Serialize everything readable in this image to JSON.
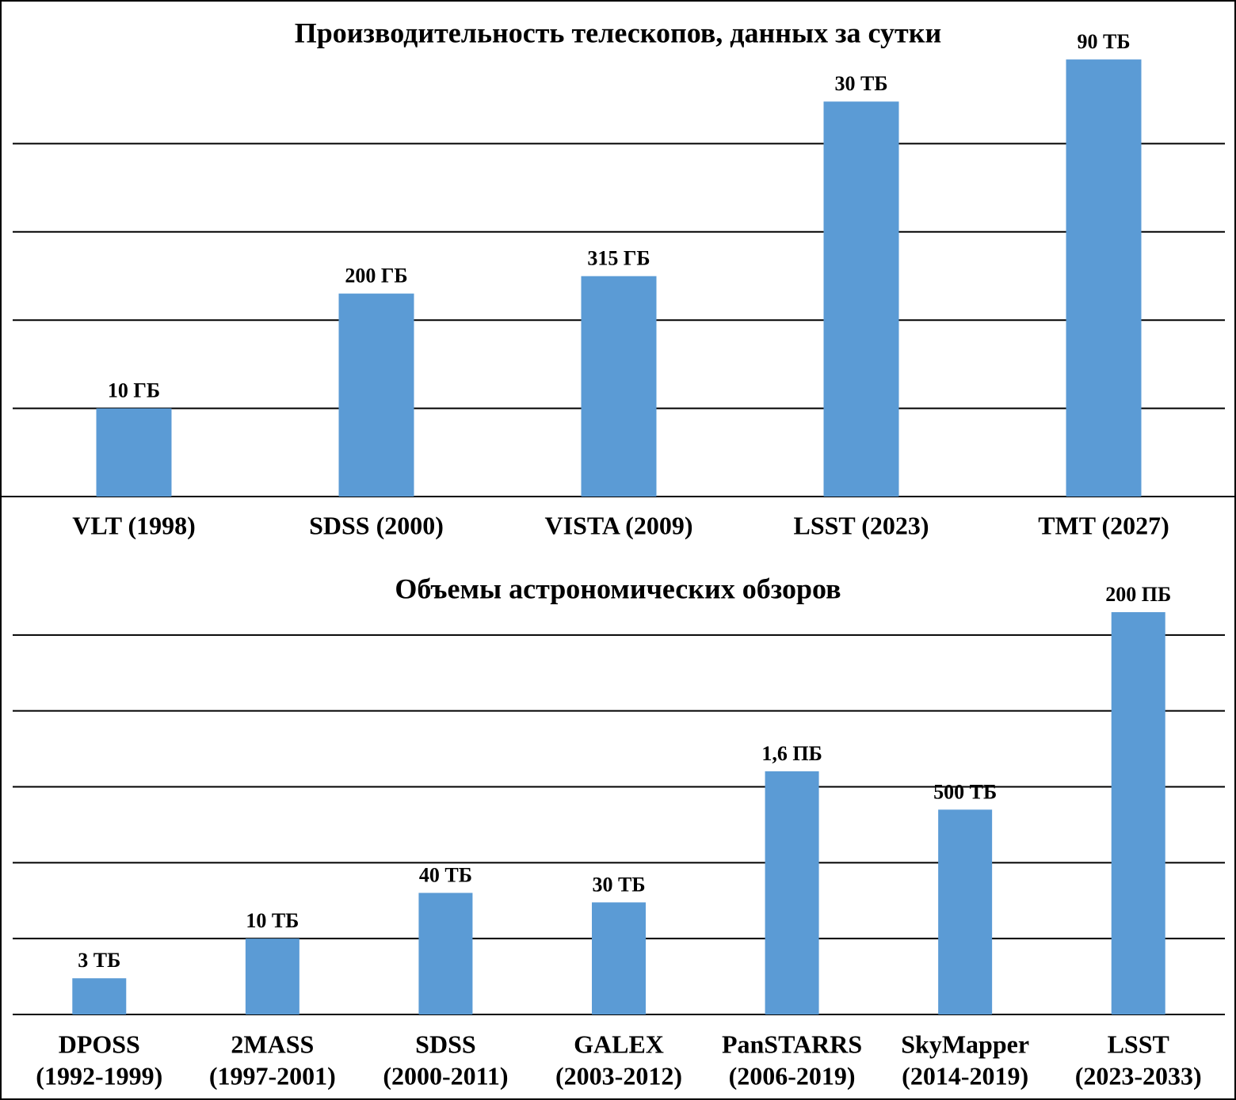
{
  "chart_data": [
    {
      "type": "bar",
      "title": "Производительность телескопов, данных за сутки",
      "categories": [
        "VLT (1998)",
        "SDSS (2000)",
        "VISTA (2009)",
        "LSST (2023)",
        "TMT (2027)"
      ],
      "values": [
        10,
        200,
        315,
        30000,
        90000
      ],
      "value_labels": [
        "10 ГБ",
        "200 ГБ",
        "315 ГБ",
        "30 ТБ",
        "90 ТБ"
      ],
      "color": "#5b9bd5",
      "log_scale": true,
      "grid": true,
      "ylim": [
        1,
        100000
      ],
      "yticks": [
        10,
        100,
        1000,
        10000
      ]
    },
    {
      "type": "bar",
      "title": "Объемы астрономических обзоров",
      "categories": [
        [
          "DPOSS",
          "(1992-1999)"
        ],
        [
          "2MASS",
          "(1997-2001)"
        ],
        [
          "SDSS",
          "(2000-2011)"
        ],
        [
          "GALEX",
          "(2003-2012)"
        ],
        [
          "PanSTARRS",
          "(2006-2019)"
        ],
        [
          "SkyMapper",
          "(2014-2019)"
        ],
        [
          "LSST",
          "(2023-2033)"
        ]
      ],
      "values": [
        3,
        10,
        40,
        30,
        1600,
        500,
        200000
      ],
      "value_labels": [
        "3 ТБ",
        "10 ТБ",
        "40 ТБ",
        "30 ТБ",
        "1,6 ПБ",
        "500 ТБ",
        "200 ПБ"
      ],
      "color": "#5b9bd5",
      "log_scale": true,
      "grid": true,
      "ylim": [
        1,
        1000000
      ],
      "yticks": [
        10,
        100,
        1000,
        10000,
        100000
      ]
    }
  ]
}
